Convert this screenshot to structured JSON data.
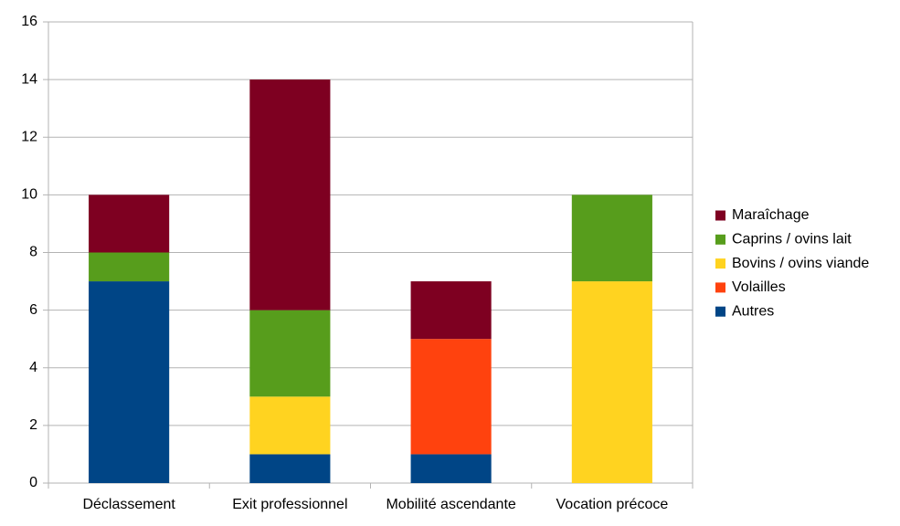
{
  "chart_data": {
    "type": "stacked-bar",
    "categories": [
      "Déclassement",
      "Exit professionnel",
      "Mobilité ascendante",
      "Vocation précoce"
    ],
    "series": [
      {
        "name": "Autres",
        "color": "#004586",
        "values": [
          7,
          1,
          1,
          0
        ]
      },
      {
        "name": "Volailles",
        "color": "#ff420e",
        "values": [
          0,
          0,
          4,
          0
        ]
      },
      {
        "name": "Bovins / ovins viande",
        "color": "#ffd320",
        "values": [
          0,
          2,
          0,
          7
        ]
      },
      {
        "name": "Caprins / ovins lait",
        "color": "#579d1c",
        "values": [
          1,
          3,
          0,
          3
        ]
      },
      {
        "name": "Maraîchage",
        "color": "#7e0021",
        "values": [
          2,
          8,
          2,
          0
        ]
      }
    ],
    "ylim": [
      0,
      16
    ],
    "yticks": [
      0,
      2,
      4,
      6,
      8,
      10,
      12,
      14,
      16
    ],
    "grid": true,
    "legend": "right"
  }
}
